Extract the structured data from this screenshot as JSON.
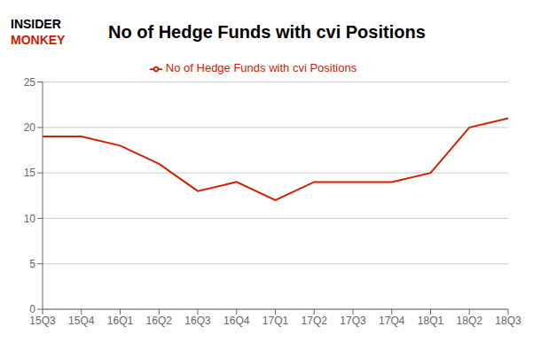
{
  "chart_data": {
    "type": "line",
    "title": "No of Hedge Funds with cvi Positions",
    "categories": [
      "15Q3",
      "15Q4",
      "16Q1",
      "16Q2",
      "16Q3",
      "16Q4",
      "17Q1",
      "17Q2",
      "17Q3",
      "17Q4",
      "18Q1",
      "18Q2",
      "18Q3"
    ],
    "series": [
      {
        "name": "No of Hedge Funds with cvi Positions",
        "color": "#cc2200",
        "values": [
          19,
          19,
          18,
          16,
          13,
          14,
          12,
          14,
          14,
          14,
          15,
          20,
          21
        ]
      }
    ],
    "ylim": [
      0,
      25
    ],
    "yticks": [
      0,
      5,
      10,
      15,
      20,
      25
    ],
    "grid": true,
    "legend": "top",
    "annotations": [
      {
        "text": "INSIDER",
        "color": "#000000"
      },
      {
        "text": "MONKEY",
        "color": "#cc2200"
      }
    ]
  }
}
